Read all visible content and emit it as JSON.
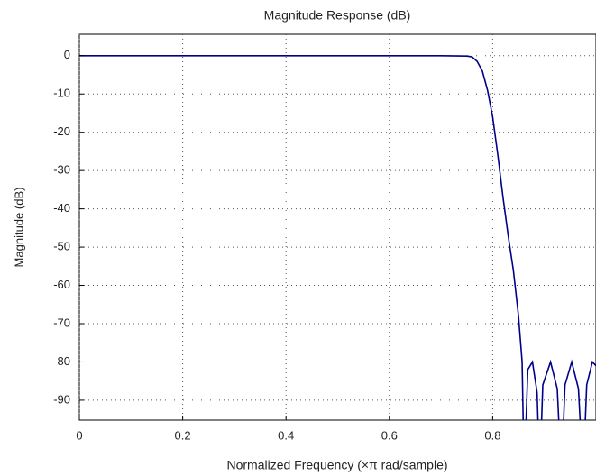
{
  "chart_data": {
    "type": "line",
    "title": "Magnitude Response (dB)",
    "x_label": "Normalized Frequency (×π rad/sample)",
    "y_label": "Magnitude (dB)",
    "xlim": [
      0,
      1
    ],
    "ylim": [
      -95.2,
      5.6
    ],
    "xticks": [
      0,
      0.2,
      0.4,
      0.6,
      0.8
    ],
    "yticks": [
      0,
      -10,
      -20,
      -30,
      -40,
      -50,
      -60,
      -70,
      -80,
      -90
    ],
    "grid": true,
    "series": [
      {
        "name": "Magnitude",
        "color": "#00008b",
        "x": [
          0,
          0.1,
          0.2,
          0.3,
          0.4,
          0.5,
          0.6,
          0.7,
          0.75,
          0.76,
          0.77,
          0.78,
          0.79,
          0.8,
          0.81,
          0.82,
          0.83,
          0.84,
          0.85,
          0.857,
          0.861,
          0.868,
          0.877,
          0.886,
          0.891,
          0.897,
          0.912,
          0.925,
          0.933,
          0.94,
          0.953,
          0.966,
          0.975,
          0.982,
          0.993,
          1
        ],
        "values": [
          0,
          0,
          0,
          0,
          0,
          0,
          0,
          0,
          -0.1,
          -0.3,
          -1.5,
          -4,
          -9,
          -16,
          -26,
          -37,
          -47,
          -56,
          -68,
          -80,
          -110,
          -82,
          -80,
          -88,
          -110,
          -86,
          -80,
          -87,
          -110,
          -86,
          -80,
          -87,
          -110,
          -86,
          -80,
          -81
        ]
      }
    ]
  }
}
